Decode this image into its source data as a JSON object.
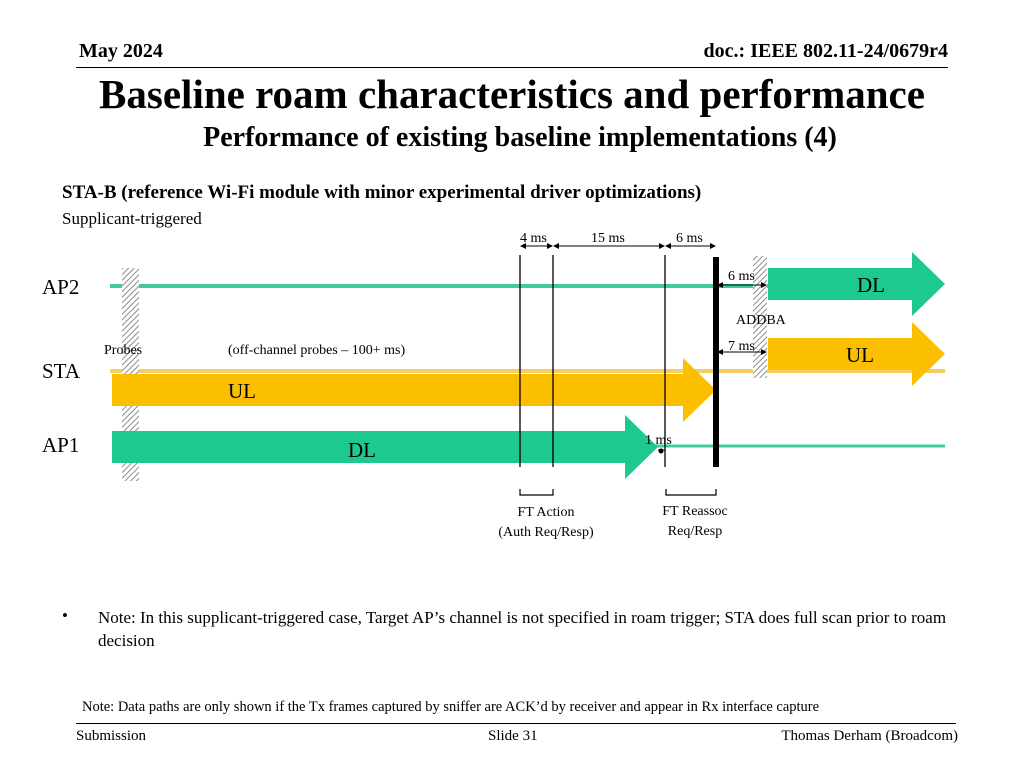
{
  "header": {
    "date": "May 2024",
    "doc_id": "doc.: IEEE 802.11-24/0679r4"
  },
  "title": "Baseline roam characteristics and performance",
  "subtitle": "Performance of existing baseline implementations (4)",
  "section": {
    "heading": "STA-B (reference Wi-Fi module with minor experimental driver optimizations)",
    "subheading": "Supplicant-triggered"
  },
  "diagram": {
    "lanes": {
      "ap2": "AP2",
      "sta": "STA",
      "ap1": "AP1"
    },
    "timing": {
      "t1": "4 ms",
      "t2": "15 ms",
      "t3": "6 ms",
      "ap2_delay": "6 ms",
      "sta_delay": "7 ms",
      "ap1_delay": "1 ms"
    },
    "labels": {
      "probes": "Probes",
      "offchannel": "(off-channel probes – 100+ ms)",
      "addba": "ADDBA",
      "ft_action_line1": "FT Action",
      "ft_action_line2": "(Auth Req/Resp)",
      "ft_reassoc_line1": "FT Reassoc",
      "ft_reassoc_line2": "Req/Resp"
    },
    "arrows": {
      "ap2_dl": "DL",
      "sta_ul_new": "UL",
      "sta_ul_old": "UL",
      "ap1_dl": "DL"
    },
    "colors": {
      "dl": "#1ec98d",
      "ul": "#fbbf00",
      "ap_line": "#3fcc9a",
      "sta_line": "#f7cc60",
      "hatch": "#8c8c8c"
    }
  },
  "note": "Note: In this supplicant-triggered case, Target AP’s channel is not specified in roam trigger; STA does full scan prior to roam decision",
  "footer": {
    "note": "Note: Data paths are only shown if the Tx frames captured by sniffer are ACK’d by receiver and appear in Rx interface capture",
    "left": "Submission",
    "center": "Slide 31",
    "right": "Thomas Derham (Broadcom)"
  }
}
